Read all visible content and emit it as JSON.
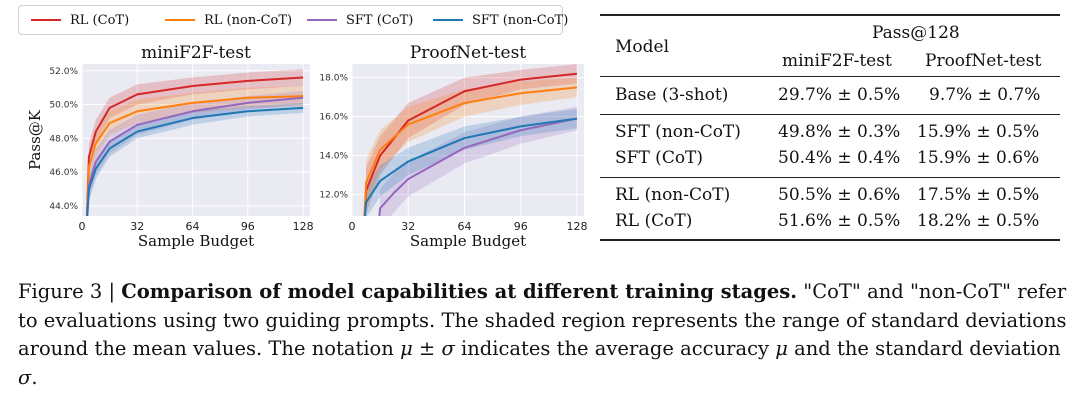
{
  "legend": [
    {
      "label": "RL (CoT)",
      "color": "#d62728"
    },
    {
      "label": "RL (non-CoT)",
      "color": "#ff7f0e"
    },
    {
      "label": "SFT (CoT)",
      "color": "#9467bd"
    },
    {
      "label": "SFT (non-CoT)",
      "color": "#1f77b4"
    }
  ],
  "chart_data": [
    {
      "type": "line",
      "title": "miniF2F-test",
      "xlabel": "Sample Budget",
      "ylabel": "Pass@K",
      "xlim": [
        0,
        132
      ],
      "ylim": [
        43.4,
        52.4
      ],
      "xticks": [
        0,
        32,
        64,
        96,
        128
      ],
      "yticks": [
        44.0,
        46.0,
        48.0,
        50.0,
        52.0
      ],
      "ytick_labels": [
        "44.0%",
        "46.0%",
        "48.0%",
        "50.0%",
        "52.0%"
      ],
      "shaded_band": "standard deviation around mean",
      "series": [
        {
          "name": "RL (CoT)",
          "color": "#d62728",
          "x": [
            4,
            8,
            16,
            32,
            64,
            96,
            128
          ],
          "y": [
            46.9,
            48.4,
            49.8,
            50.6,
            51.1,
            51.4,
            51.6
          ],
          "band": [
            0.8,
            0.7,
            0.6,
            0.6,
            0.5,
            0.5,
            0.5
          ]
        },
        {
          "name": "RL (non-CoT)",
          "color": "#ff7f0e",
          "x": [
            4,
            8,
            16,
            32,
            64,
            96,
            128
          ],
          "y": [
            46.3,
            47.7,
            48.9,
            49.6,
            50.1,
            50.4,
            50.5
          ],
          "band": [
            0.9,
            0.8,
            0.7,
            0.7,
            0.6,
            0.6,
            0.6
          ]
        },
        {
          "name": "SFT (CoT)",
          "color": "#9467bd",
          "x": [
            4,
            8,
            16,
            32,
            64,
            96,
            128
          ],
          "y": [
            45.2,
            46.6,
            47.8,
            48.8,
            49.6,
            50.1,
            50.4
          ],
          "band": [
            0.9,
            0.8,
            0.7,
            0.6,
            0.5,
            0.4,
            0.4
          ]
        },
        {
          "name": "SFT (non-CoT)",
          "color": "#1f77b4",
          "x": [
            4,
            8,
            16,
            32,
            64,
            96,
            128
          ],
          "y": [
            45.0,
            46.2,
            47.4,
            48.4,
            49.2,
            49.6,
            49.8
          ],
          "band": [
            0.7,
            0.6,
            0.5,
            0.4,
            0.4,
            0.3,
            0.3
          ]
        }
      ]
    },
    {
      "type": "line",
      "title": "ProofNet-test",
      "xlabel": "Sample Budget",
      "ylabel": "",
      "xlim": [
        0,
        132
      ],
      "ylim": [
        10.9,
        18.7
      ],
      "xticks": [
        0,
        32,
        64,
        96,
        128
      ],
      "yticks": [
        12.0,
        14.0,
        16.0,
        18.0
      ],
      "ytick_labels": [
        "12.0%",
        "14.0%",
        "16.0%",
        "18.0%"
      ],
      "shaded_band": "standard deviation around mean",
      "series": [
        {
          "name": "RL (CoT)",
          "color": "#d62728",
          "x": [
            8,
            16,
            32,
            64,
            96,
            128
          ],
          "y": [
            12.2,
            14.0,
            15.8,
            17.3,
            17.9,
            18.2
          ],
          "band": [
            1.2,
            1.0,
            0.9,
            0.7,
            0.5,
            0.5
          ]
        },
        {
          "name": "RL (non-CoT)",
          "color": "#ff7f0e",
          "x": [
            8,
            16,
            32,
            64,
            96,
            128
          ],
          "y": [
            12.6,
            14.3,
            15.6,
            16.7,
            17.2,
            17.5
          ],
          "band": [
            1.2,
            1.0,
            0.9,
            0.7,
            0.6,
            0.5
          ]
        },
        {
          "name": "SFT (CoT)",
          "color": "#9467bd",
          "x": [
            16,
            24,
            32,
            64,
            96,
            128
          ],
          "y": [
            11.3,
            12.1,
            12.8,
            14.4,
            15.3,
            15.9
          ],
          "band": [
            1.0,
            1.0,
            0.9,
            0.8,
            0.7,
            0.6
          ]
        },
        {
          "name": "SFT (non-CoT)",
          "color": "#1f77b4",
          "x": [
            8,
            16,
            32,
            64,
            96,
            128
          ],
          "y": [
            11.6,
            12.7,
            13.7,
            14.9,
            15.5,
            15.9
          ],
          "band": [
            0.8,
            0.8,
            0.7,
            0.6,
            0.5,
            0.5
          ]
        }
      ]
    }
  ],
  "table": {
    "header_group": "Pass@128",
    "header_model": "Model",
    "columns": [
      "miniF2F-test",
      "ProofNet-test"
    ],
    "rows": [
      {
        "model": "Base (3-shot)",
        "minif2f": "29.7% ± 0.5%",
        "proofnet": "9.7% ± 0.7%"
      },
      {
        "model": "SFT (non-CoT)",
        "minif2f": "49.8% ± 0.3%",
        "proofnet": "15.9% ± 0.5%"
      },
      {
        "model": "SFT (CoT)",
        "minif2f": "50.4% ± 0.4%",
        "proofnet": "15.9% ± 0.6%"
      },
      {
        "model": "RL (non-CoT)",
        "minif2f": "50.5% ± 0.6%",
        "proofnet": "17.5% ± 0.5%"
      },
      {
        "model": "RL (CoT)",
        "minif2f": "51.6% ± 0.5%",
        "proofnet": "18.2% ± 0.5%"
      }
    ]
  },
  "caption": {
    "prefix": "Figure 3 | ",
    "bold": "Comparison of model capabilities at different training stages.",
    "text1": " \"CoT\" and \"non-CoT\" refer to evaluations using two guiding prompts. The shaded region represents the range of standard deviations around the mean values. The notation ",
    "notation": "μ ± σ",
    "text2": " indicates the average accuracy ",
    "mu": "μ",
    "text3": " and the standard deviation ",
    "sigma": "σ",
    "text4": "."
  }
}
